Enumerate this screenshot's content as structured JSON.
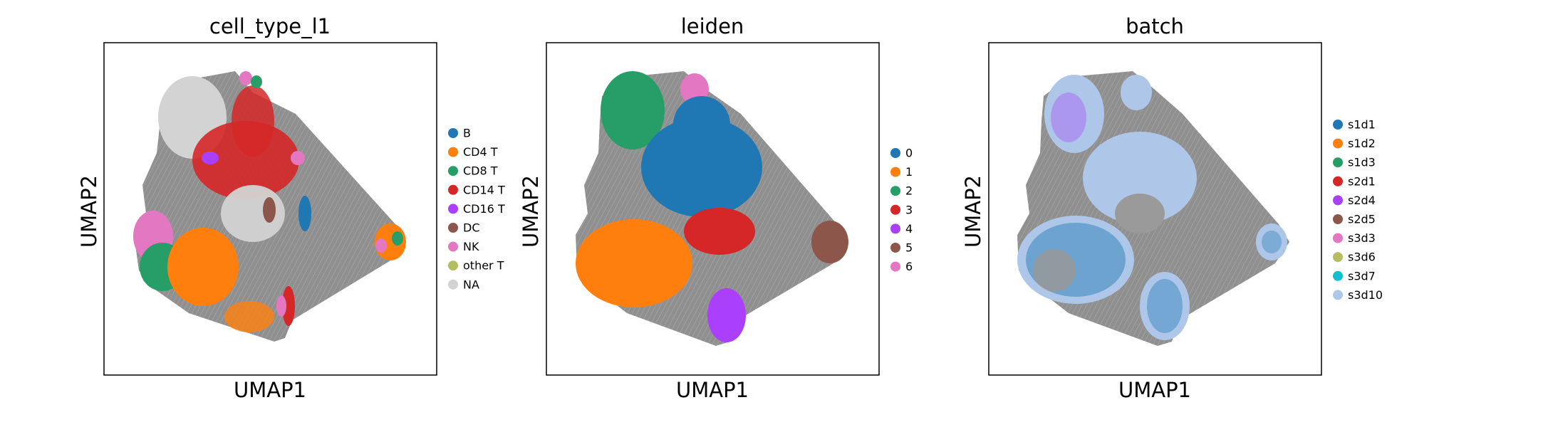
{
  "chart_data": [
    {
      "type": "scatter",
      "title": "cell_type_l1",
      "xlabel": "UMAP1",
      "ylabel": "UMAP2",
      "xticks": [],
      "yticks": [],
      "legend_placement": "right",
      "series": [
        {
          "name": "B",
          "color": "#1f77b4"
        },
        {
          "name": "CD4 T",
          "color": "#ff7f0e"
        },
        {
          "name": "CD8 T",
          "color": "#279e68"
        },
        {
          "name": "CD14 T",
          "color": "#d62728"
        },
        {
          "name": "CD16 T",
          "color": "#aa40fc"
        },
        {
          "name": "DC",
          "color": "#8c564b"
        },
        {
          "name": "NK",
          "color": "#e377c2"
        },
        {
          "name": "other T",
          "color": "#b5bd61"
        },
        {
          "name": "NA",
          "color": "#d3d3d3"
        }
      ]
    },
    {
      "type": "scatter",
      "title": "leiden",
      "xlabel": "UMAP1",
      "ylabel": "UMAP2",
      "xticks": [],
      "yticks": [],
      "legend_placement": "right",
      "series": [
        {
          "name": "0",
          "color": "#1f77b4"
        },
        {
          "name": "1",
          "color": "#ff7f0e"
        },
        {
          "name": "2",
          "color": "#279e68"
        },
        {
          "name": "3",
          "color": "#d62728"
        },
        {
          "name": "4",
          "color": "#aa40fc"
        },
        {
          "name": "5",
          "color": "#8c564b"
        },
        {
          "name": "6",
          "color": "#e377c2"
        }
      ]
    },
    {
      "type": "scatter",
      "title": "batch",
      "xlabel": "UMAP1",
      "ylabel": "UMAP2",
      "xticks": [],
      "yticks": [],
      "legend_placement": "right",
      "series": [
        {
          "name": "s1d1",
          "color": "#1f77b4"
        },
        {
          "name": "s1d2",
          "color": "#ff7f0e"
        },
        {
          "name": "s1d3",
          "color": "#279e68"
        },
        {
          "name": "s2d1",
          "color": "#d62728"
        },
        {
          "name": "s2d4",
          "color": "#aa40fc"
        },
        {
          "name": "s2d5",
          "color": "#8c564b"
        },
        {
          "name": "s3d3",
          "color": "#e377c2"
        },
        {
          "name": "s3d6",
          "color": "#b5bd61"
        },
        {
          "name": "s3d7",
          "color": "#17becf"
        },
        {
          "name": "s3d10",
          "color": "#aec7e8"
        }
      ]
    }
  ],
  "colors": {
    "edges": "#808080",
    "frame": "#000000"
  }
}
